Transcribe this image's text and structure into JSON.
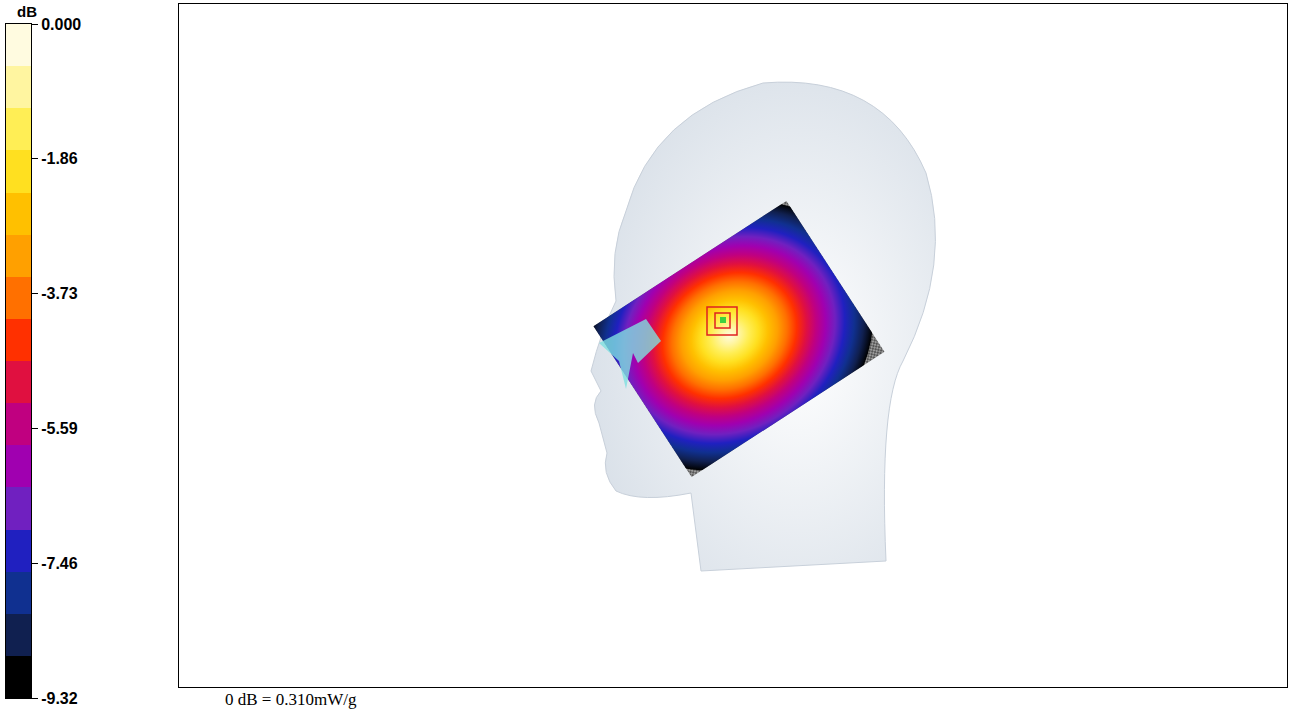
{
  "chart_data": {
    "type": "colorbar",
    "title": "dB",
    "range": [
      -9.32,
      0
    ],
    "ticks": [
      {
        "value": 0,
        "label": "0.000"
      },
      -1.86,
      -3.73,
      -5.59,
      -7.46,
      -9.32
    ],
    "colors": [
      "#fffbe0",
      "#fff5a0",
      "#ffee55",
      "#ffe020",
      "#ffc000",
      "#ffa000",
      "#ff7000",
      "#ff3000",
      "#e01040",
      "#c00080",
      "#a000b0",
      "#7020c0",
      "#2020c0",
      "#103090",
      "#102050",
      "#000000"
    ],
    "note": "0 dB = 0.310mW/g"
  }
}
